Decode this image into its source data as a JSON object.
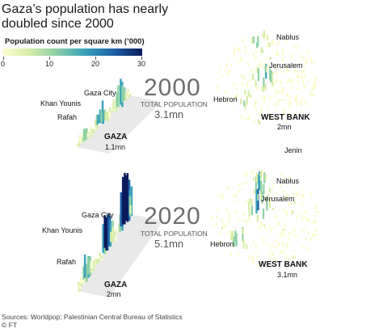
{
  "title": "Gaza’s population has nearly doubled since 2000",
  "legend": {
    "label": "Population count per square km (’000)",
    "ticks": [
      "0",
      "10",
      "20",
      "30"
    ],
    "colors": [
      "#fbfbd0",
      "#d8eea9",
      "#8fd0a6",
      "#3aa3bb",
      "#1d5fa5",
      "#0b1b5b"
    ]
  },
  "panels": [
    {
      "year": "2000",
      "total_label": "TOTAL POPULATION",
      "total_value": "3.1mn",
      "gaza": {
        "name": "GAZA",
        "population": "1.1mn",
        "cities": [
          "Gaza City",
          "Khan Younis",
          "Rafah"
        ]
      },
      "west_bank": {
        "name": "WEST BANK",
        "population": "2mn",
        "cities": [
          "Nablus",
          "Jerusalem",
          "Hebron"
        ]
      }
    },
    {
      "year": "2020",
      "total_label": "TOTAL POPULATION",
      "total_value": "5.1mn",
      "gaza": {
        "name": "GAZA",
        "population": "2mn",
        "cities": [
          "Gaza City",
          "Khan Younis",
          "Rafah"
        ]
      },
      "west_bank": {
        "name": "WEST BANK",
        "population": "3.1mn",
        "cities": [
          "Jenin",
          "Nablus",
          "Jerusalem",
          "Hebron"
        ]
      }
    }
  ],
  "footer": {
    "sources": "Sources: Worldpop; Palestinian Central Bureau of Statistics",
    "credit": "© FT"
  }
}
